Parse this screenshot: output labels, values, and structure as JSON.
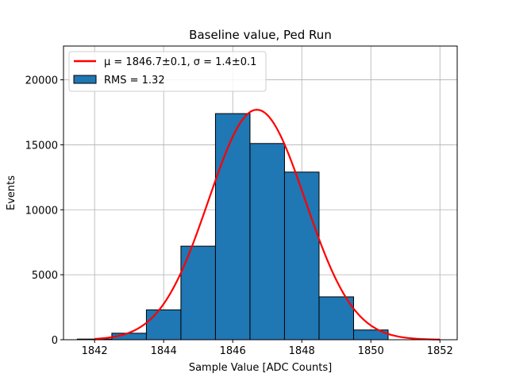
{
  "chart_data": {
    "type": "bar",
    "title": "Baseline value, Ped Run",
    "xlabel": "Sample Value [ADC Counts]",
    "ylabel": "Events",
    "xlim": [
      1841.1,
      1852.5
    ],
    "ylim": [
      0,
      22600
    ],
    "grid": true,
    "legend_position": "top-left",
    "x_ticks": [
      1842,
      1844,
      1846,
      1848,
      1850,
      1852
    ],
    "y_ticks": [
      0,
      5000,
      10000,
      15000,
      20000
    ],
    "bins": [
      {
        "left": 1841.5,
        "right": 1842.5,
        "count": 50
      },
      {
        "left": 1842.5,
        "right": 1843.5,
        "count": 500
      },
      {
        "left": 1843.5,
        "right": 1844.5,
        "count": 2300
      },
      {
        "left": 1844.5,
        "right": 1845.5,
        "count": 7200
      },
      {
        "left": 1845.5,
        "right": 1846.5,
        "count": 17400
      },
      {
        "left": 1846.5,
        "right": 1847.5,
        "count": 15100
      },
      {
        "left": 1847.5,
        "right": 1848.5,
        "count": 12900
      },
      {
        "left": 1848.5,
        "right": 1849.5,
        "count": 3300
      },
      {
        "left": 1849.5,
        "right": 1850.5,
        "count": 750
      }
    ],
    "fit": {
      "mu": 1846.7,
      "sigma": 1.4,
      "amplitude": 17700,
      "x_range": [
        1842,
        1852
      ]
    },
    "colors": {
      "bars": "#1f77b4",
      "bar_edge": "#000000",
      "fit": "#ff0000",
      "grid": "#b0b0b0"
    },
    "legend": [
      {
        "label": "μ = 1846.7±0.1, σ = 1.4±0.1",
        "kind": "line"
      },
      {
        "label": "RMS = 1.32",
        "kind": "bar"
      }
    ]
  }
}
